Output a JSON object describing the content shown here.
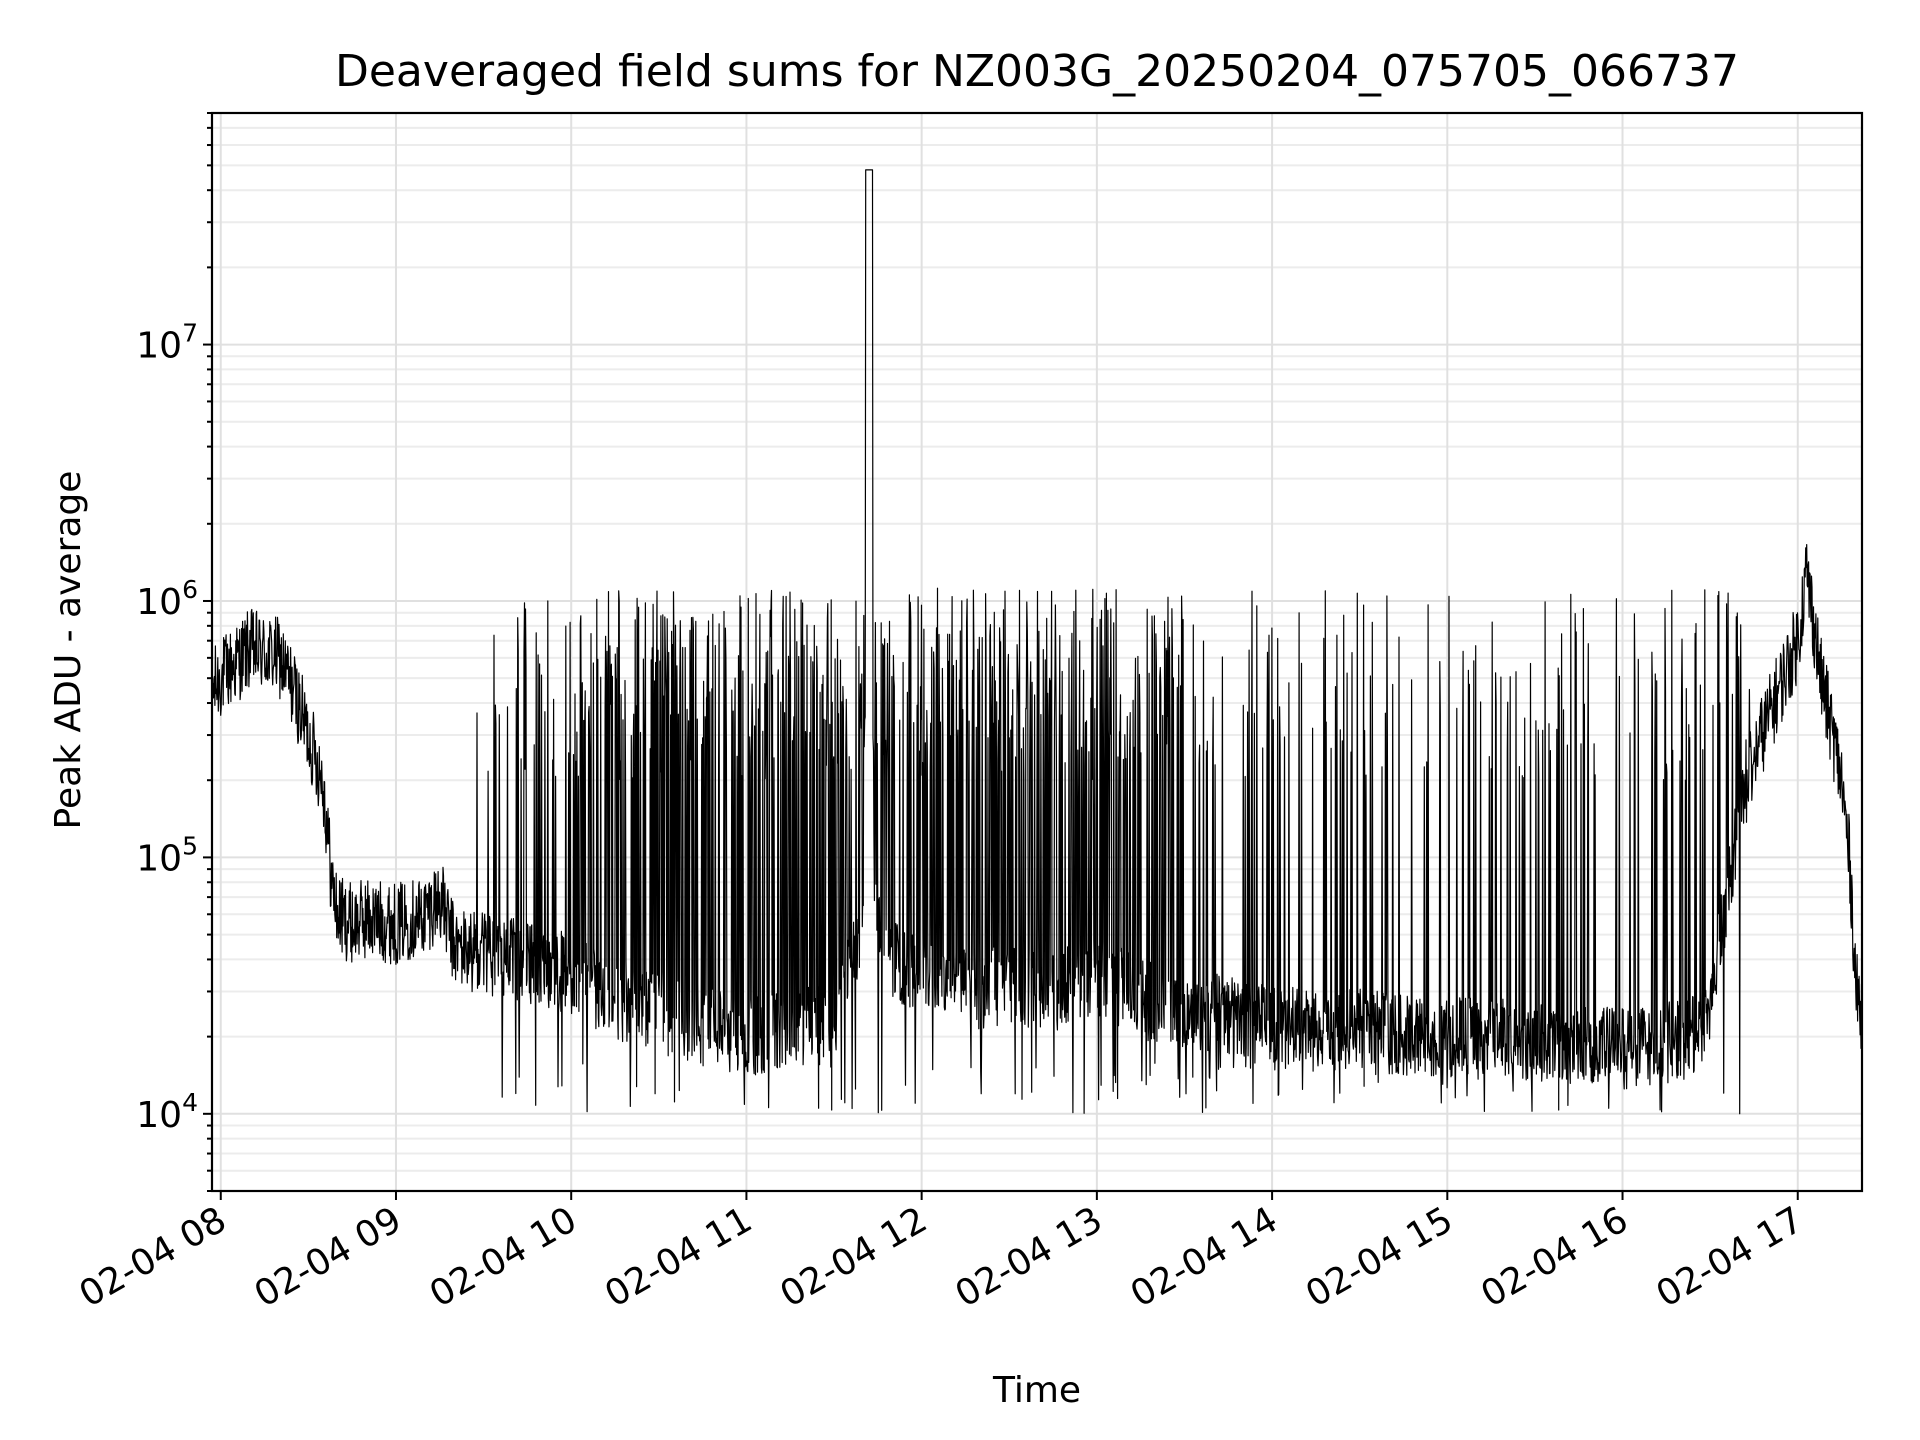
{
  "chart_data": {
    "type": "line",
    "title": "Deaveraged field sums for NZ003G_20250204_075705_066737",
    "xlabel": "Time",
    "ylabel": "Peak ADU - average",
    "y_scale": "log",
    "ylim": [
      5000,
      80000000
    ],
    "xlim": [
      "2025-02-04 07:57",
      "2025-02-04 17:22"
    ],
    "grid": true,
    "line_color": "#000000",
    "x_ticks": [
      {
        "t": "2025-02-04 08:00",
        "label": "02-04 08"
      },
      {
        "t": "2025-02-04 09:00",
        "label": "02-04 09"
      },
      {
        "t": "2025-02-04 10:00",
        "label": "02-04 10"
      },
      {
        "t": "2025-02-04 11:00",
        "label": "02-04 11"
      },
      {
        "t": "2025-02-04 12:00",
        "label": "02-04 12"
      },
      {
        "t": "2025-02-04 13:00",
        "label": "02-04 13"
      },
      {
        "t": "2025-02-04 14:00",
        "label": "02-04 14"
      },
      {
        "t": "2025-02-04 15:00",
        "label": "02-04 15"
      },
      {
        "t": "2025-02-04 16:00",
        "label": "02-04 16"
      },
      {
        "t": "2025-02-04 17:00",
        "label": "02-04 17"
      }
    ],
    "y_ticks": [
      {
        "value": 10000,
        "base": "10",
        "exp": "4"
      },
      {
        "value": 100000,
        "base": "10",
        "exp": "5"
      },
      {
        "value": 1000000,
        "base": "10",
        "exp": "6"
      },
      {
        "value": 10000000,
        "base": "10",
        "exp": "7"
      }
    ],
    "series": [
      {
        "x": [
          "2025-02-04 07:57",
          "2025-02-04 08:00",
          "2025-02-04 08:10",
          "2025-02-04 08:20",
          "2025-02-04 08:25",
          "2025-02-04 08:30",
          "2025-02-04 08:35",
          "2025-02-04 08:38",
          "2025-02-04 08:40",
          "2025-02-04 08:45",
          "2025-02-04 08:50",
          "2025-02-04 09:00",
          "2025-02-04 09:10",
          "2025-02-04 09:15",
          "2025-02-04 09:20",
          "2025-02-04 09:30",
          "2025-02-04 09:40",
          "2025-02-04 10:00",
          "2025-02-04 10:15",
          "2025-02-04 10:30",
          "2025-02-04 10:45",
          "2025-02-04 11:00",
          "2025-02-04 11:15",
          "2025-02-04 11:30",
          "2025-02-04 11:40",
          "2025-02-04 11:42",
          "2025-02-04 11:43",
          "2025-02-04 11:44",
          "2025-02-04 11:50",
          "2025-02-04 12:00",
          "2025-02-04 12:15",
          "2025-02-04 12:30",
          "2025-02-04 12:45",
          "2025-02-04 13:00",
          "2025-02-04 13:15",
          "2025-02-04 13:30",
          "2025-02-04 13:45",
          "2025-02-04 14:00",
          "2025-02-04 14:15",
          "2025-02-04 14:30",
          "2025-02-04 14:45",
          "2025-02-04 15:00",
          "2025-02-04 15:15",
          "2025-02-04 15:30",
          "2025-02-04 15:45",
          "2025-02-04 16:00",
          "2025-02-04 16:15",
          "2025-02-04 16:25",
          "2025-02-04 16:30",
          "2025-02-04 16:35",
          "2025-02-04 16:40",
          "2025-02-04 16:45",
          "2025-02-04 16:50",
          "2025-02-04 16:55",
          "2025-02-04 17:00",
          "2025-02-04 17:03",
          "2025-02-04 17:05",
          "2025-02-04 17:08",
          "2025-02-04 17:12",
          "2025-02-04 17:15",
          "2025-02-04 17:18",
          "2025-02-04 17:20",
          "2025-02-04 17:22"
        ],
        "y": [
          450000,
          500000,
          650000,
          600000,
          450000,
          300000,
          200000,
          80000,
          60000,
          55000,
          58000,
          55000,
          60000,
          70000,
          45000,
          42000,
          40000,
          35000,
          28000,
          25000,
          22000,
          20000,
          22000,
          22000,
          60000,
          48000000,
          900000,
          60000,
          40000,
          35000,
          30000,
          32000,
          30000,
          35000,
          28000,
          26000,
          24000,
          22000,
          21000,
          22000,
          20000,
          20000,
          20000,
          19000,
          19000,
          18000,
          19000,
          20000,
          28000,
          60000,
          150000,
          250000,
          350000,
          500000,
          700000,
          1300000,
          900000,
          500000,
          300000,
          200000,
          90000,
          30000,
          25000
        ]
      }
    ]
  }
}
